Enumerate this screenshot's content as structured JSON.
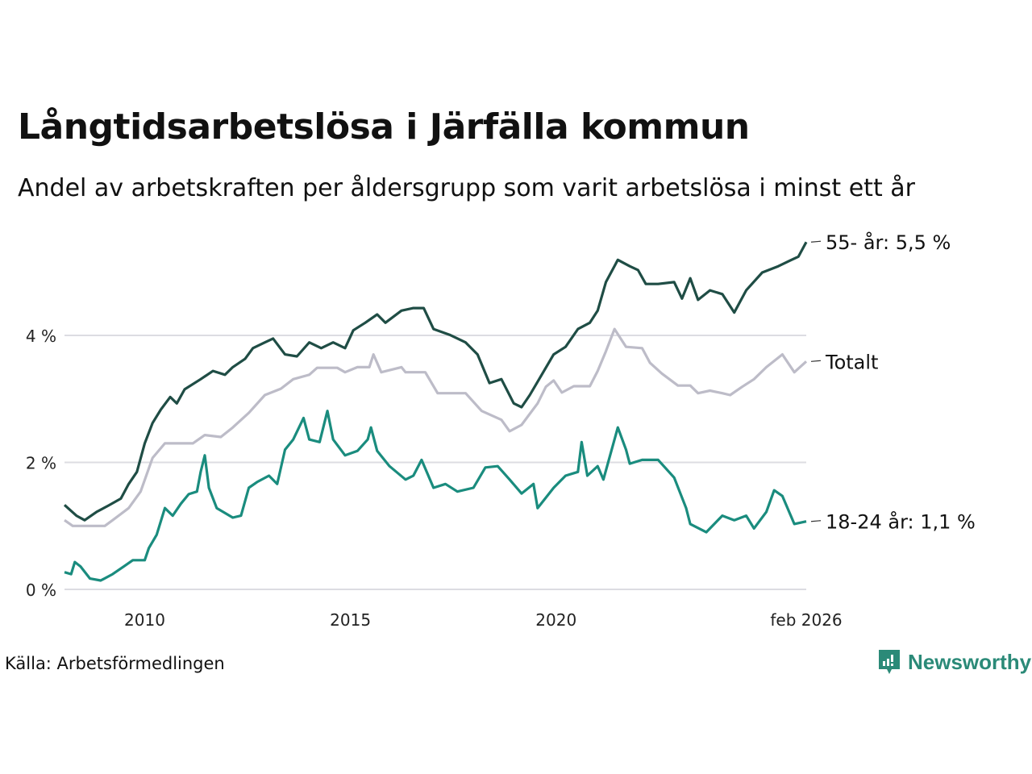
{
  "title": "Långtidsarbetslösa i Järfälla kommun",
  "subtitle": "Andel av arbetskraften per åldersgrupp som varit arbetslösa i minst ett år",
  "source": "Källa: Arbetsförmedlingen",
  "logo_text": "Newsworthy",
  "chart_data": {
    "type": "line",
    "title": "Långtidsarbetslösa i Järfälla kommun",
    "xlabel": "",
    "ylabel": "",
    "xlim": [
      2008.05,
      2026.08
    ],
    "ylim": [
      0,
      5.5
    ],
    "grid": true,
    "yticks": [
      {
        "value": 0,
        "label": "0 %"
      },
      {
        "value": 2,
        "label": "2 %"
      },
      {
        "value": 4,
        "label": "4 %"
      }
    ],
    "xticks": [
      {
        "value": 2010,
        "label": "2010"
      },
      {
        "value": 2015,
        "label": "2015"
      },
      {
        "value": 2020,
        "label": "2020"
      },
      {
        "value": 2026.08,
        "label": "feb 2026"
      }
    ],
    "series": [
      {
        "name": "Totalt",
        "label": "Totalt",
        "color": "#bdbcc8",
        "x": [
          2008.05,
          2008.25,
          2009.03,
          2009.22,
          2009.61,
          2009.9,
          2010.19,
          2010.49,
          2011.17,
          2011.46,
          2011.85,
          2012.14,
          2012.53,
          2012.92,
          2013.31,
          2013.61,
          2014.0,
          2014.19,
          2014.68,
          2014.87,
          2015.17,
          2015.46,
          2015.56,
          2015.75,
          2016.24,
          2016.34,
          2016.82,
          2017.12,
          2017.8,
          2018.19,
          2018.67,
          2018.87,
          2019.16,
          2019.55,
          2019.75,
          2019.94,
          2020.14,
          2020.43,
          2020.82,
          2021.01,
          2021.21,
          2021.42,
          2021.7,
          2022.09,
          2022.28,
          2022.57,
          2022.96,
          2023.26,
          2023.45,
          2023.74,
          2024.04,
          2024.23,
          2024.52,
          2024.81,
          2025.11,
          2025.5,
          2025.79,
          2026.08
        ],
        "y": [
          1.09,
          1.0,
          1.0,
          1.09,
          1.28,
          1.54,
          2.07,
          2.3,
          2.3,
          2.43,
          2.4,
          2.55,
          2.78,
          3.06,
          3.16,
          3.31,
          3.38,
          3.49,
          3.49,
          3.42,
          3.5,
          3.5,
          3.7,
          3.42,
          3.5,
          3.42,
          3.42,
          3.09,
          3.09,
          2.81,
          2.67,
          2.49,
          2.59,
          2.93,
          3.19,
          3.29,
          3.1,
          3.2,
          3.2,
          3.44,
          3.75,
          4.1,
          3.82,
          3.8,
          3.57,
          3.4,
          3.21,
          3.21,
          3.09,
          3.13,
          3.09,
          3.06,
          3.19,
          3.31,
          3.5,
          3.7,
          3.42,
          3.59
        ]
      },
      {
        "name": "55- år",
        "label": "55- år: 5,5 %",
        "color": "#1f4d45",
        "x": [
          2008.05,
          2008.34,
          2008.54,
          2008.83,
          2009.12,
          2009.42,
          2009.61,
          2009.81,
          2010.0,
          2010.19,
          2010.39,
          2010.62,
          2010.78,
          2010.97,
          2011.36,
          2011.66,
          2011.95,
          2012.14,
          2012.44,
          2012.63,
          2012.92,
          2013.12,
          2013.41,
          2013.7,
          2014.0,
          2014.29,
          2014.58,
          2014.87,
          2015.07,
          2015.36,
          2015.65,
          2015.85,
          2016.24,
          2016.53,
          2016.78,
          2017.02,
          2017.41,
          2017.8,
          2018.09,
          2018.38,
          2018.67,
          2018.97,
          2019.16,
          2019.36,
          2019.65,
          2019.94,
          2020.23,
          2020.53,
          2020.82,
          2021.01,
          2021.21,
          2021.5,
          2021.79,
          2021.99,
          2022.18,
          2022.48,
          2022.87,
          2023.06,
          2023.26,
          2023.45,
          2023.74,
          2024.04,
          2024.33,
          2024.62,
          2025.01,
          2025.4,
          2025.69,
          2025.89,
          2026.08
        ],
        "y": [
          1.33,
          1.16,
          1.09,
          1.22,
          1.32,
          1.43,
          1.66,
          1.85,
          2.3,
          2.62,
          2.83,
          3.03,
          2.93,
          3.15,
          3.31,
          3.44,
          3.38,
          3.5,
          3.63,
          3.8,
          3.89,
          3.95,
          3.7,
          3.67,
          3.89,
          3.8,
          3.89,
          3.8,
          4.08,
          4.2,
          4.33,
          4.2,
          4.39,
          4.43,
          4.43,
          4.1,
          4.01,
          3.89,
          3.7,
          3.25,
          3.31,
          2.93,
          2.87,
          3.06,
          3.38,
          3.7,
          3.82,
          4.1,
          4.2,
          4.39,
          4.84,
          5.19,
          5.09,
          5.03,
          4.81,
          4.81,
          4.84,
          4.58,
          4.9,
          4.56,
          4.71,
          4.65,
          4.36,
          4.71,
          4.99,
          5.09,
          5.18,
          5.24,
          5.47
        ]
      },
      {
        "name": "18-24 år",
        "label": "18-24 år: 1,1 %",
        "color": "#1a8c7e",
        "x": [
          2008.05,
          2008.21,
          2008.3,
          2008.44,
          2008.67,
          2008.93,
          2009.22,
          2009.51,
          2009.71,
          2010.0,
          2010.1,
          2010.29,
          2010.49,
          2010.68,
          2010.88,
          2011.07,
          2011.27,
          2011.36,
          2011.46,
          2011.56,
          2011.75,
          2012.14,
          2012.34,
          2012.53,
          2012.73,
          2013.02,
          2013.22,
          2013.41,
          2013.61,
          2013.86,
          2014.0,
          2014.25,
          2014.44,
          2014.58,
          2014.87,
          2015.17,
          2015.42,
          2015.5,
          2015.65,
          2015.95,
          2016.34,
          2016.53,
          2016.73,
          2017.02,
          2017.31,
          2017.6,
          2017.99,
          2018.28,
          2018.58,
          2018.87,
          2019.16,
          2019.45,
          2019.55,
          2019.94,
          2020.23,
          2020.53,
          2020.62,
          2020.76,
          2021.01,
          2021.15,
          2021.5,
          2021.7,
          2021.79,
          2022.09,
          2022.48,
          2022.87,
          2023.16,
          2023.26,
          2023.65,
          2024.04,
          2024.33,
          2024.62,
          2024.81,
          2025.11,
          2025.3,
          2025.5,
          2025.79,
          2026.08
        ],
        "y": [
          0.27,
          0.24,
          0.43,
          0.36,
          0.17,
          0.14,
          0.24,
          0.37,
          0.46,
          0.46,
          0.65,
          0.86,
          1.28,
          1.16,
          1.35,
          1.5,
          1.54,
          1.85,
          2.11,
          1.6,
          1.28,
          1.13,
          1.16,
          1.6,
          1.69,
          1.79,
          1.66,
          2.2,
          2.36,
          2.7,
          2.36,
          2.32,
          2.81,
          2.36,
          2.11,
          2.18,
          2.36,
          2.55,
          2.18,
          1.94,
          1.73,
          1.79,
          2.04,
          1.6,
          1.66,
          1.54,
          1.6,
          1.92,
          1.94,
          1.73,
          1.51,
          1.66,
          1.28,
          1.6,
          1.79,
          1.85,
          2.32,
          1.79,
          1.94,
          1.73,
          2.55,
          2.2,
          1.98,
          2.04,
          2.04,
          1.76,
          1.28,
          1.03,
          0.9,
          1.16,
          1.09,
          1.16,
          0.96,
          1.22,
          1.56,
          1.47,
          1.03,
          1.07
        ]
      }
    ]
  }
}
